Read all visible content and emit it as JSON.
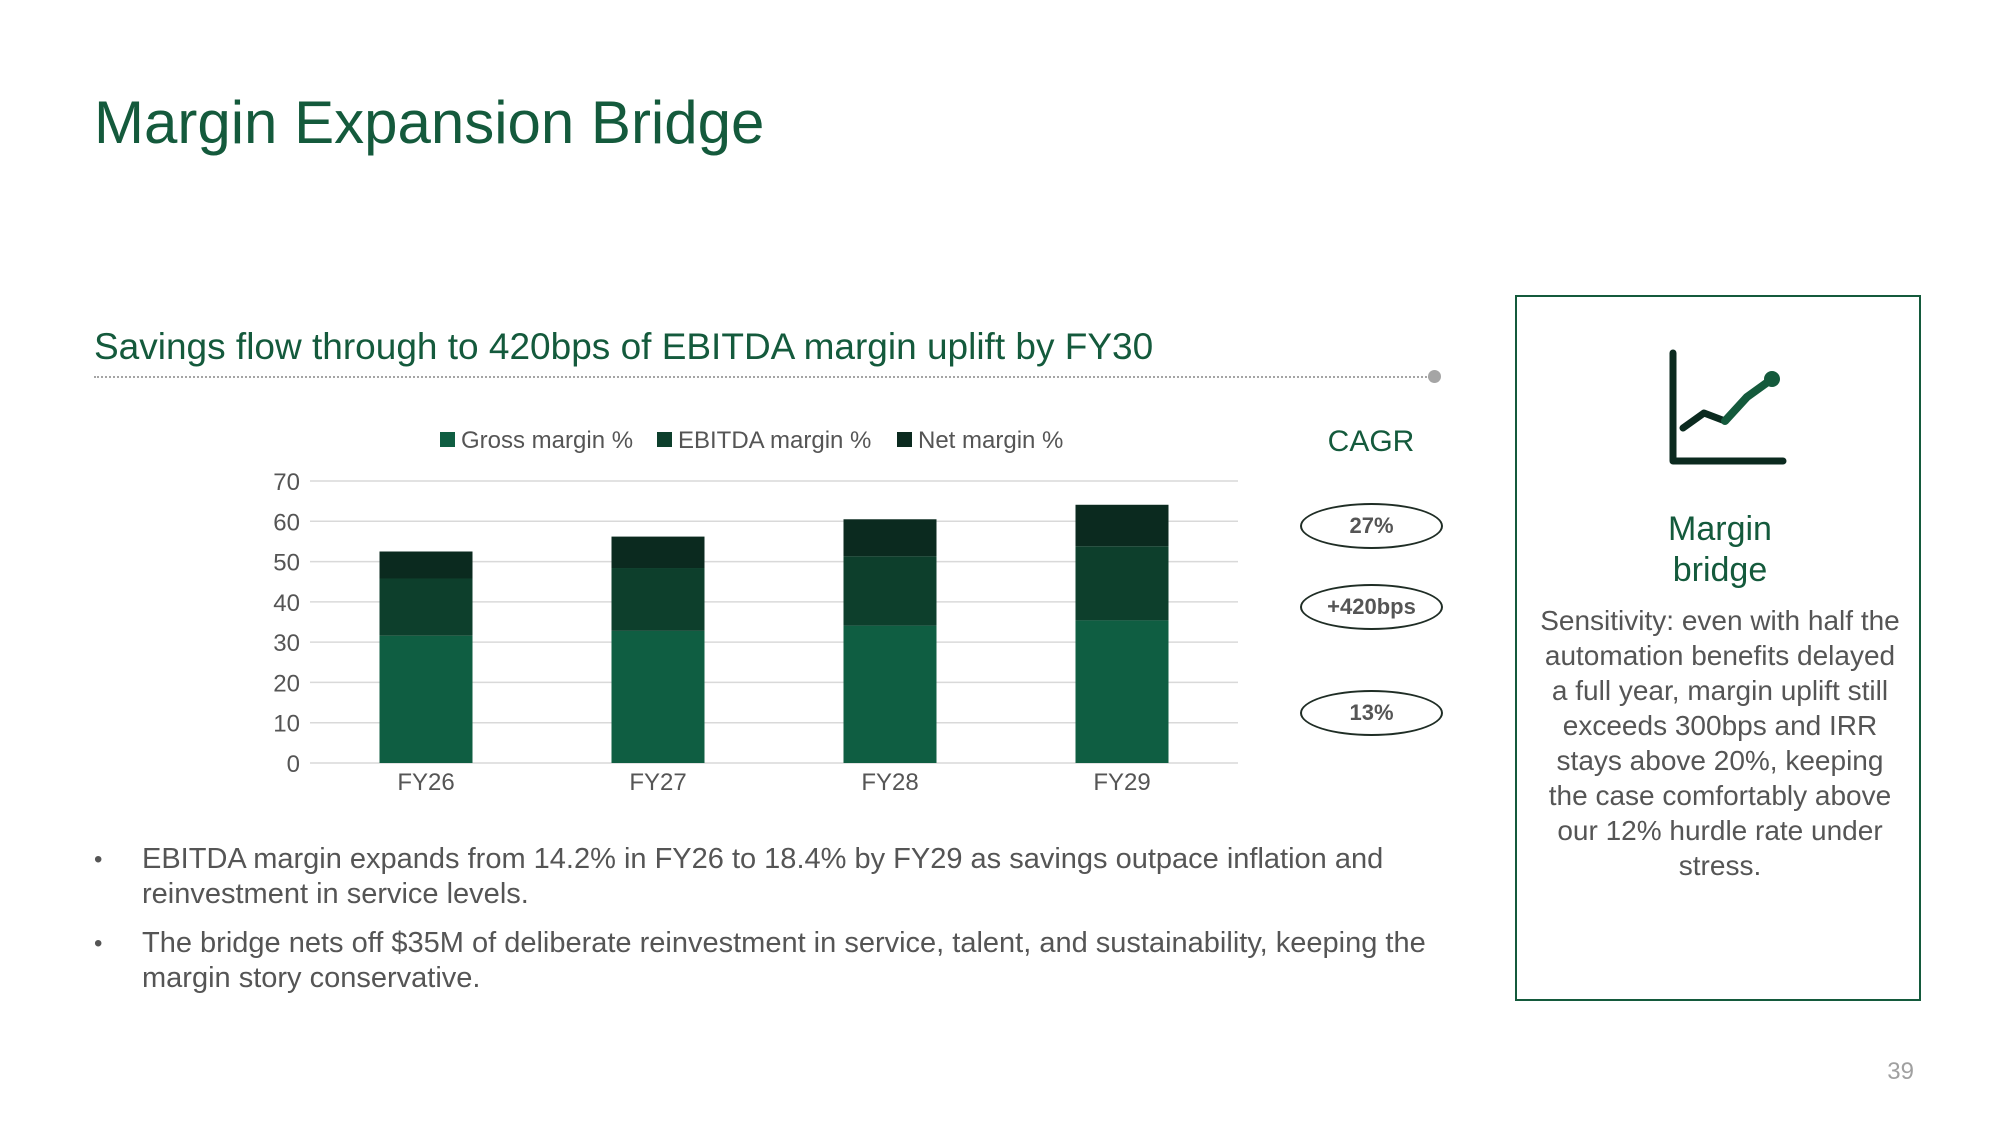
{
  "slide": {
    "title": "Margin Expansion Bridge",
    "subtitle": "Savings flow through to 420bps of EBITDA margin uplift by FY30",
    "page_number": "39"
  },
  "cagr": {
    "title": "CAGR",
    "values": [
      "27%",
      "+420bps",
      "13%"
    ]
  },
  "bullets": [
    "EBITDA margin expands from 14.2% in FY26 to 18.4% by FY29 as savings outpace inflation and reinvestment in service levels.",
    "The bridge nets off $35M of deliberate reinvestment in service, talent, and sustainability, keeping the margin story conservative."
  ],
  "side_panel": {
    "icon": "line-chart-icon",
    "heading_line1": "Margin",
    "heading_line2": "bridge",
    "body": "Sensitivity: even with half the automation benefits delayed a full year, margin uplift still exceeds 300bps and IRR stays above 20%, keeping the case comfortably above our 12% hurdle rate under stress."
  },
  "colors": {
    "accent": "#145a3c",
    "gross": "#0f5e42",
    "ebitda": "#0d3f2c",
    "net": "#0b2a1f",
    "text": "#555555",
    "grid": "#d9d9d9"
  },
  "chart_data": {
    "type": "bar",
    "stacked": true,
    "categories": [
      "FY26",
      "FY27",
      "FY28",
      "FY29"
    ],
    "series": [
      {
        "name": "Gross margin %",
        "values": [
          31.6,
          32.8,
          34.1,
          35.4
        ]
      },
      {
        "name": "EBITDA margin %",
        "values": [
          14.2,
          15.6,
          17.2,
          18.4
        ]
      },
      {
        "name": "Net margin %",
        "values": [
          6.7,
          7.8,
          9.2,
          10.3
        ]
      }
    ],
    "ylim": [
      0,
      70
    ],
    "yticks": [
      0,
      10,
      20,
      30,
      40,
      50,
      60,
      70
    ],
    "grid": true,
    "legend": "top",
    "title": "",
    "xlabel": "",
    "ylabel": ""
  }
}
